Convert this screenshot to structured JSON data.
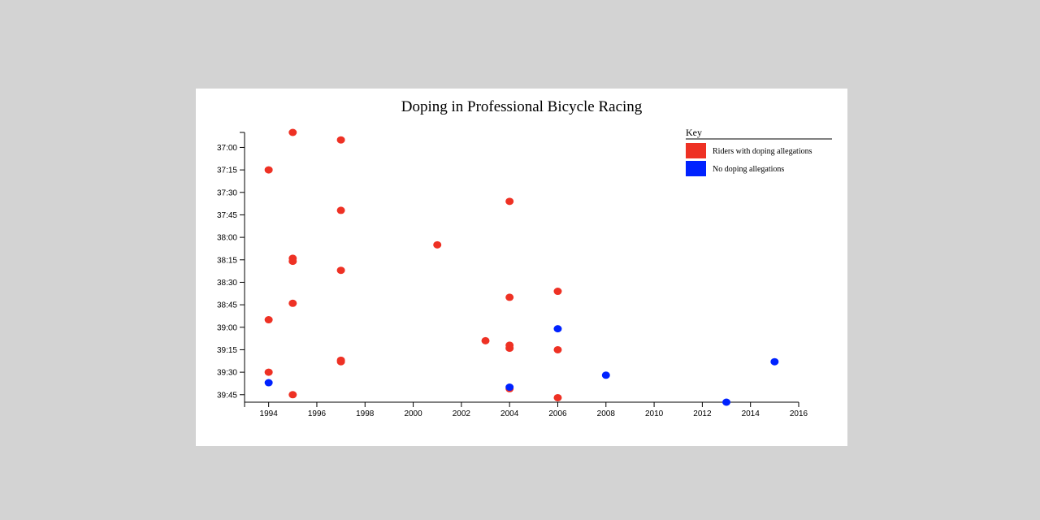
{
  "chart_data": {
    "type": "scatter",
    "title": "Doping in Professional Bicycle Racing",
    "xlabel": "",
    "ylabel": "",
    "x_ticks": [
      1994,
      1996,
      1998,
      2000,
      2002,
      2004,
      2006,
      2008,
      2010,
      2012,
      2014,
      2016
    ],
    "xlim": [
      1993,
      2016
    ],
    "y_ticks": [
      "37:00",
      "37:15",
      "37:30",
      "37:45",
      "38:00",
      "38:15",
      "38:30",
      "38:45",
      "39:00",
      "39:15",
      "39:30",
      "39:45"
    ],
    "ylim": [
      "36:50",
      "39:50"
    ],
    "legend": {
      "title": "Key",
      "placement": "top-right",
      "entries": [
        {
          "label": "Riders with doping allegations",
          "color": "#ee3124"
        },
        {
          "label": "No doping allegations",
          "color": "#0022ff"
        }
      ]
    },
    "series": [
      {
        "color": "#ee3124",
        "points": [
          {
            "x": 1995,
            "y": "36:50"
          },
          {
            "x": 1997,
            "y": "36:55"
          },
          {
            "x": 1994,
            "y": "37:15"
          },
          {
            "x": 2004,
            "y": "37:36"
          },
          {
            "x": 1997,
            "y": "37:42"
          },
          {
            "x": 2001,
            "y": "38:05"
          },
          {
            "x": 1995,
            "y": "38:14"
          },
          {
            "x": 1995,
            "y": "38:16"
          },
          {
            "x": 1997,
            "y": "38:22"
          },
          {
            "x": 2006,
            "y": "38:36"
          },
          {
            "x": 2004,
            "y": "38:40"
          },
          {
            "x": 1995,
            "y": "38:44"
          },
          {
            "x": 1994,
            "y": "38:55"
          },
          {
            "x": 2003,
            "y": "39:09"
          },
          {
            "x": 2004,
            "y": "39:12"
          },
          {
            "x": 2004,
            "y": "39:14"
          },
          {
            "x": 2006,
            "y": "39:15"
          },
          {
            "x": 1997,
            "y": "39:22"
          },
          {
            "x": 1997,
            "y": "39:23"
          },
          {
            "x": 1994,
            "y": "39:30"
          },
          {
            "x": 2004,
            "y": "39:41"
          },
          {
            "x": 1995,
            "y": "39:45"
          },
          {
            "x": 2006,
            "y": "39:47"
          }
        ]
      },
      {
        "color": "#0022ff",
        "points": [
          {
            "x": 2006,
            "y": "39:01"
          },
          {
            "x": 2015,
            "y": "39:23"
          },
          {
            "x": 2008,
            "y": "39:32"
          },
          {
            "x": 1994,
            "y": "39:37"
          },
          {
            "x": 2004,
            "y": "39:40"
          },
          {
            "x": 2013,
            "y": "39:50"
          }
        ]
      }
    ]
  }
}
